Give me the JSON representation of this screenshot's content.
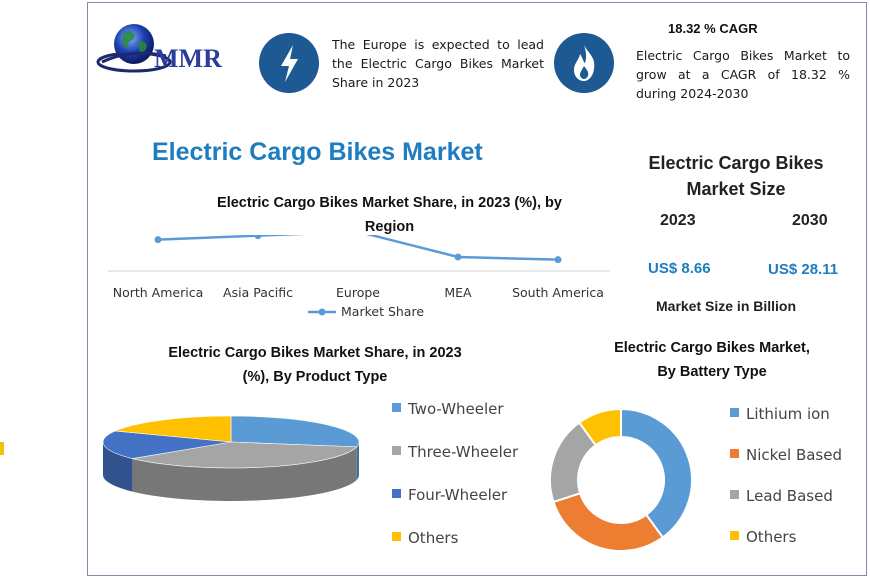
{
  "logo": {
    "text": "MMR"
  },
  "header": {
    "europe_note": "The Europe is expected to lead the Electric Cargo Bikes Market Share in 2023",
    "cagr_title": "18.32 % CAGR",
    "cagr_note": "Electric Cargo Bikes Market to grow at a CAGR of 18.32 % during 2024-2030",
    "icons": {
      "left": "lightning-bolt-icon",
      "right": "flame-icon"
    }
  },
  "main_title": "Electric Cargo Bikes Market",
  "market_size": {
    "title_line1": "Electric Cargo Bikes",
    "title_line2": "Market Size",
    "year_start": "2023",
    "year_end": "2030",
    "value_start": "US$ 8.66",
    "value_end": "US$ 28.11",
    "unit_note": "Market Size in Billion"
  },
  "colors": {
    "accent_blue": "#1e7cc0",
    "icon_circle": "#1d5a93",
    "line": "#5b9bd5",
    "series": [
      "#5b9bd5",
      "#ed7d31",
      "#a5a5a5",
      "#ffc000",
      "#4472c4"
    ]
  },
  "chart_data": [
    {
      "type": "line",
      "title_line1": "Electric Cargo Bikes Market Share, in 2023 (%), by",
      "title_line2": "Region",
      "categories": [
        "North America",
        "Asia Pacific",
        "Europe",
        "MEA",
        "South America"
      ],
      "series": [
        {
          "name": "Market Share",
          "values": [
            25,
            28,
            31,
            12,
            10
          ]
        }
      ],
      "ylim": [
        0,
        60
      ],
      "grid": false,
      "legend": "bottom"
    },
    {
      "type": "pie",
      "style": "3d",
      "title_line1": "Electric Cargo Bikes Market Share, in 2023",
      "title_line2": "(%), By Product Type",
      "categories": [
        "Two-Wheeler",
        "Three-Wheeler",
        "Four-Wheeler",
        "Others"
      ],
      "values": [
        28,
        36,
        18,
        18
      ],
      "slice_colors": [
        "#5b9bd5",
        "#a5a5a5",
        "#4472c4",
        "#ffc000"
      ],
      "legend": "right"
    },
    {
      "type": "pie",
      "style": "donut",
      "title_line1": "Electric Cargo Bikes Market,",
      "title_line2": "By Battery Type",
      "categories": [
        "Lithium ion",
        "Nickel Based",
        "Lead Based",
        "Others"
      ],
      "values": [
        40,
        30,
        20,
        10
      ],
      "slice_colors": [
        "#5b9bd5",
        "#ed7d31",
        "#a5a5a5",
        "#ffc000"
      ],
      "legend": "right"
    }
  ]
}
